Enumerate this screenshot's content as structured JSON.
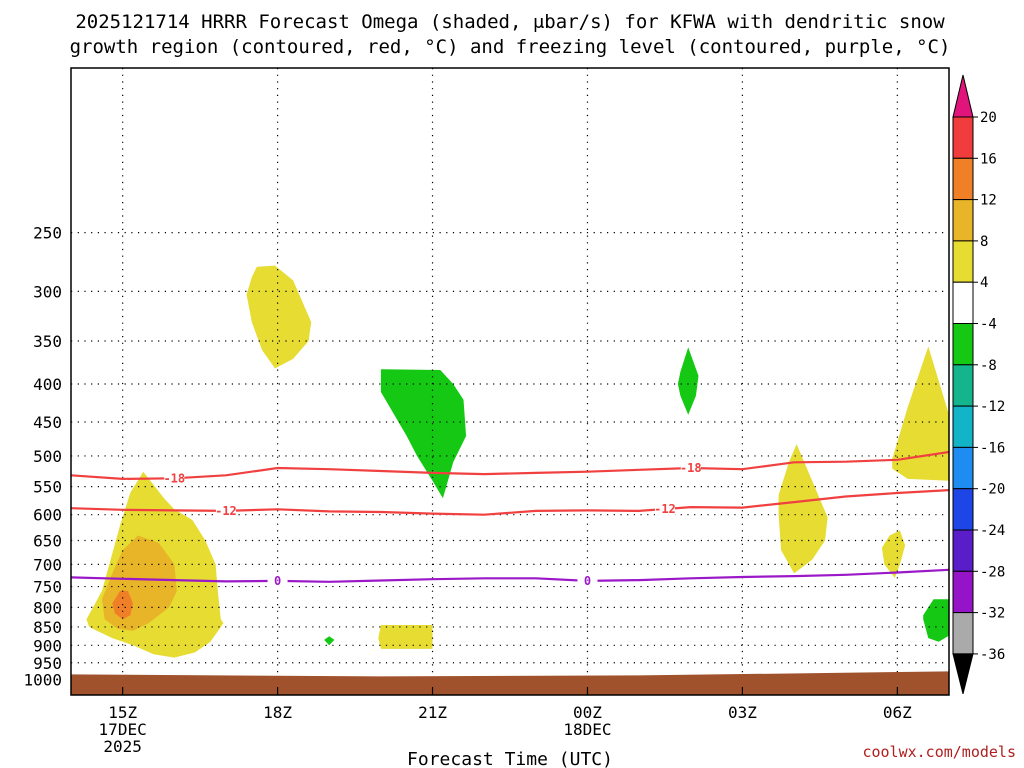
{
  "chart_data": {
    "type": "heatmap",
    "title_lines": [
      "2025121714 HRRR Forecast Omega (shaded, μbar/s) for KFWA with dendritic snow",
      "growth region (contoured, red, °C) and freezing level (contoured, purple, °C)"
    ],
    "xlabel": "Forecast Time (UTC)",
    "ylabel": "",
    "credit": "coolwx.com/models",
    "x_unit": "forecast hours after 15Z 17DEC2025",
    "xlim": [
      -1,
      16
    ],
    "ylim": [
      1050,
      150
    ],
    "y_ticks": [
      250,
      300,
      350,
      400,
      450,
      500,
      550,
      600,
      650,
      700,
      750,
      800,
      850,
      900,
      950,
      1000
    ],
    "x_ticks": [
      {
        "h": 0,
        "lines": [
          "15Z",
          "17DEC",
          "2025"
        ]
      },
      {
        "h": 3,
        "lines": [
          "18Z"
        ]
      },
      {
        "h": 6,
        "lines": [
          "21Z"
        ]
      },
      {
        "h": 9,
        "lines": [
          "00Z",
          "18DEC"
        ]
      },
      {
        "h": 12,
        "lines": [
          "03Z"
        ]
      },
      {
        "h": 15,
        "lines": [
          "06Z"
        ]
      }
    ],
    "ground_pressure": 985,
    "ground_color": "#a0522d",
    "colorbar": {
      "levels": [
        "20",
        "16",
        "12",
        "8",
        "4",
        "-4",
        "-8",
        "-12",
        "-16",
        "-20",
        "-24",
        "-28",
        "-32",
        "-36"
      ],
      "top_arrow_color": "#e0147a",
      "bottom_arrow_color": "#000000",
      "colors": [
        "#f03c3c",
        "#f08028",
        "#e8b428",
        "#e6dc32",
        "#ffffff",
        "#14c814",
        "#14b48c",
        "#14b4c8",
        "#1e8cf0",
        "#1e46e6",
        "#5a1ec8",
        "#9614c8",
        "#aaaaaa"
      ]
    },
    "series": [
      {
        "name": "-18",
        "type": "line",
        "color": "#f04040",
        "x": [
          -1,
          0,
          1,
          2,
          3,
          4,
          5,
          6,
          7,
          8,
          9,
          10,
          11,
          12,
          13,
          14,
          15,
          16
        ],
        "y": [
          531,
          537,
          536,
          531,
          519,
          521,
          524,
          527,
          529,
          527,
          525,
          522,
          519,
          521,
          510,
          509,
          506,
          494
        ]
      },
      {
        "name": "-12",
        "type": "line",
        "color": "#f04040",
        "x": [
          -1,
          0,
          1,
          2,
          3,
          4,
          5,
          6,
          7,
          8,
          9,
          10,
          11,
          12,
          13,
          14,
          15,
          16
        ],
        "y": [
          588,
          591,
          592,
          593,
          590,
          594,
          595,
          598,
          600,
          593,
          592,
          593,
          586,
          587,
          577,
          567,
          561,
          556
        ]
      },
      {
        "name": "0",
        "type": "line",
        "color": "#9b18c8",
        "x": [
          -1,
          0,
          1,
          2,
          3,
          4,
          5,
          6,
          7,
          8,
          9,
          10,
          11,
          12,
          13,
          14,
          15,
          16
        ],
        "y": [
          729,
          732,
          735,
          738,
          737,
          739,
          736,
          733,
          731,
          731,
          737,
          735,
          731,
          728,
          726,
          723,
          718,
          712
        ]
      }
    ],
    "shaded_regions": [
      {
        "level": "4",
        "x": [
          -0.7,
          -0.4,
          -0.05,
          0.15,
          0.4,
          0.8,
          1.0,
          1.35,
          1.6,
          1.8,
          1.85,
          1.9,
          1.95,
          1.85,
          1.7,
          1.4,
          1.0,
          0.6,
          0.2,
          -0.2,
          -0.5,
          -0.65,
          -0.7
        ],
        "y": [
          830,
          760,
          620,
          560,
          525,
          570,
          590,
          610,
          650,
          700,
          770,
          830,
          840,
          860,
          890,
          920,
          935,
          925,
          900,
          880,
          860,
          850,
          830
        ]
      },
      {
        "level": "8",
        "x": [
          -0.4,
          -0.2,
          0.0,
          0.3,
          0.7,
          1.0,
          1.05,
          0.9,
          0.5,
          0.2,
          -0.1,
          -0.35,
          -0.4
        ],
        "y": [
          780,
          720,
          670,
          640,
          655,
          700,
          760,
          800,
          840,
          860,
          855,
          830,
          780
        ]
      },
      {
        "level": "12",
        "x": [
          -0.2,
          -0.05,
          0.1,
          0.2,
          0.15,
          0.0,
          -0.15,
          -0.2
        ],
        "y": [
          790,
          760,
          760,
          790,
          820,
          830,
          815,
          790
        ]
      },
      {
        "level": "4",
        "x": [
          2.4,
          2.5,
          2.6,
          2.95,
          3.3,
          3.65,
          3.6,
          3.3,
          2.95,
          2.7,
          2.5,
          2.4
        ],
        "y": [
          303,
          287,
          278,
          277,
          290,
          330,
          350,
          370,
          381,
          360,
          330,
          303
        ]
      },
      {
        "level": "-8",
        "x": [
          3.9,
          4.0,
          4.1,
          4.0,
          3.9
        ],
        "y": [
          885,
          875,
          885,
          900,
          885
        ]
      },
      {
        "level": "4",
        "x": [
          4.95,
          5.0,
          6.0,
          6.0,
          5.0,
          4.95
        ],
        "y": [
          880,
          845,
          845,
          910,
          910,
          880
        ]
      },
      {
        "level": "-8",
        "x": [
          5.0,
          6.15,
          6.4,
          6.6,
          6.65,
          6.4,
          6.2,
          6.0,
          5.7,
          5.5,
          5.0
        ],
        "y": [
          382,
          383,
          400,
          420,
          470,
          510,
          570,
          540,
          500,
          470,
          410
        ]
      },
      {
        "level": "-8",
        "x": [
          10.8,
          10.95,
          11.15,
          11.1,
          10.95,
          10.8,
          10.75
        ],
        "y": [
          385,
          357,
          390,
          415,
          440,
          415,
          400
        ]
      },
      {
        "level": "4",
        "x": [
          12.7,
          12.9,
          13.05,
          13.3,
          13.65,
          13.6,
          13.35,
          13.0,
          12.75,
          12.7
        ],
        "y": [
          565,
          510,
          482,
          530,
          605,
          650,
          690,
          720,
          670,
          600
        ]
      },
      {
        "level": "4",
        "x": [
          14.7,
          14.85,
          15.05,
          15.15,
          15.05,
          14.95,
          14.75,
          14.7
        ],
        "y": [
          665,
          640,
          630,
          660,
          700,
          730,
          700,
          665
        ]
      },
      {
        "level": "4",
        "x": [
          14.9,
          15.2,
          15.6,
          16.0,
          16.0,
          15.2,
          14.9
        ],
        "y": [
          505,
          430,
          356,
          440,
          540,
          537,
          520
        ]
      },
      {
        "level": "-8",
        "x": [
          15.5,
          15.7,
          16.3,
          16.3,
          16.1,
          15.8,
          15.6,
          15.5
        ],
        "y": [
          820,
          780,
          780,
          820,
          865,
          890,
          880,
          830
        ]
      }
    ]
  }
}
